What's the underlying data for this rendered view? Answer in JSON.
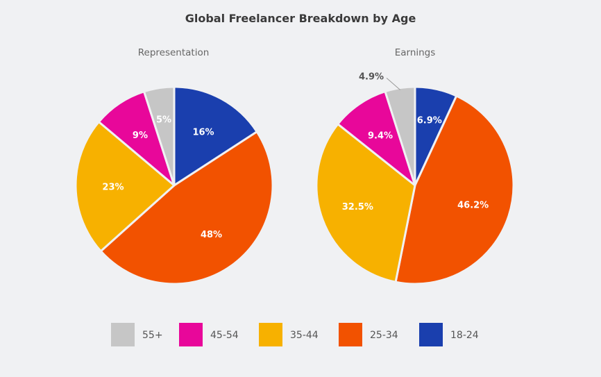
{
  "chart_data": {
    "type": "pie",
    "title": "Global Freelancer Breakdown by Age",
    "categories": [
      "55+",
      "45-54",
      "35-44",
      "25-34",
      "18-24"
    ],
    "colors": {
      "55+": "#c6c6c6",
      "45-54": "#e8079a",
      "35-44": "#f7b100",
      "25-34": "#f25200",
      "18-24": "#1a3fae"
    },
    "legend_position": "bottom",
    "pies": [
      {
        "subtitle": "Representation",
        "slices": [
          {
            "category": "18-24",
            "value": 16,
            "label": "16%"
          },
          {
            "category": "25-34",
            "value": 48,
            "label": "48%"
          },
          {
            "category": "35-44",
            "value": 23,
            "label": "23%"
          },
          {
            "category": "45-54",
            "value": 9,
            "label": "9%"
          },
          {
            "category": "55+",
            "value": 5,
            "label": "5%"
          }
        ]
      },
      {
        "subtitle": "Earnings",
        "slices": [
          {
            "category": "18-24",
            "value": 6.9,
            "label": "6.9%"
          },
          {
            "category": "25-34",
            "value": 46.2,
            "label": "46.2%"
          },
          {
            "category": "35-44",
            "value": 32.5,
            "label": "32.5%"
          },
          {
            "category": "45-54",
            "value": 9.4,
            "label": "9.4%"
          },
          {
            "category": "55+",
            "value": 4.9,
            "label": "4.9%"
          }
        ]
      }
    ]
  }
}
